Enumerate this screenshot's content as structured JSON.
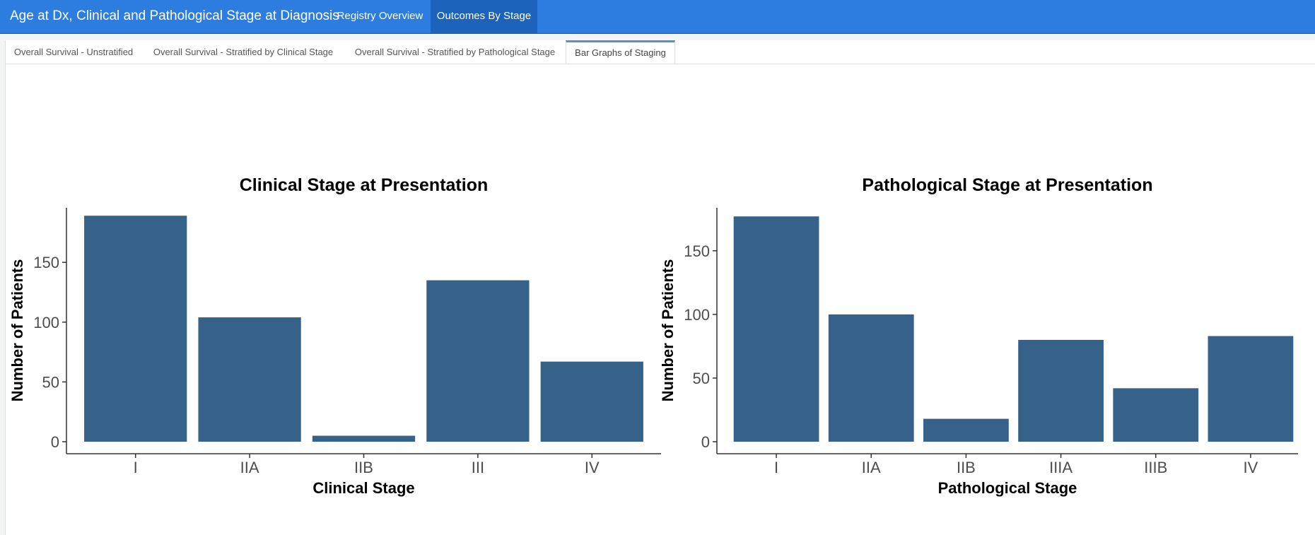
{
  "app": {
    "title": "Age at Dx, Clinical and Pathological Stage at Diagnosis",
    "nav": [
      {
        "label": "Registry Overview",
        "active": false
      },
      {
        "label": "Outcomes By Stage",
        "active": true
      }
    ],
    "brand_color": "#2c7ddf"
  },
  "tabs": [
    {
      "label": "Overall Survival - Unstratified",
      "active": false
    },
    {
      "label": "Overall Survival - Stratified by Clinical Stage",
      "active": false
    },
    {
      "label": "Overall Survival - Stratified by Pathological Stage",
      "active": false
    },
    {
      "label": "Bar Graphs of Staging",
      "active": true
    }
  ],
  "chart_data": [
    {
      "type": "bar",
      "title": "Clinical Stage at Presentation",
      "xlabel": "Clinical Stage",
      "ylabel": "Number of Patients",
      "categories": [
        "I",
        "IIA",
        "IIB",
        "III",
        "IV"
      ],
      "values": [
        189,
        104,
        5,
        135,
        67
      ],
      "ylim": [
        0,
        198
      ],
      "yticks": [
        0,
        50,
        100,
        150
      ],
      "bar_color": "#366289",
      "grid": false
    },
    {
      "type": "bar",
      "title": "Pathological Stage at Presentation",
      "xlabel": "Pathological Stage",
      "ylabel": "Number of Patients",
      "categories": [
        "I",
        "IIA",
        "IIB",
        "IIIA",
        "IIIB",
        "IV"
      ],
      "values": [
        177,
        100,
        18,
        80,
        42,
        83
      ],
      "ylim": [
        0,
        186
      ],
      "yticks": [
        0,
        50,
        100,
        150
      ],
      "bar_color": "#366289",
      "grid": false
    }
  ]
}
